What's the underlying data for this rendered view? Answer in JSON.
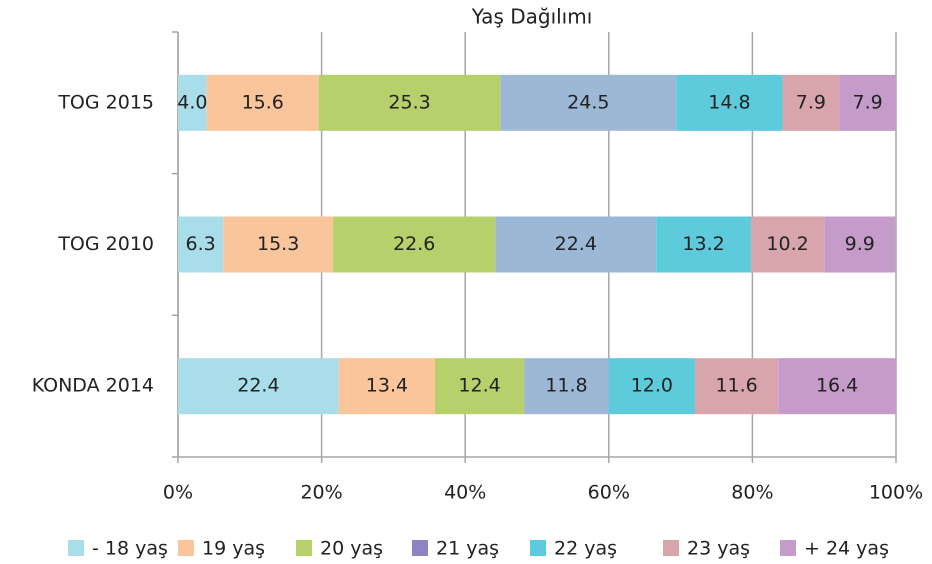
{
  "chart_data": {
    "type": "stacked_bar_horizontal",
    "title": "Yaş Dağılımı",
    "categories": [
      "TOG 2015",
      "TOG 2010",
      "KONDA 2014"
    ],
    "series": [
      {
        "name": "- 18 yaş",
        "color": "#a9dde9",
        "values": [
          4,
          6.3,
          22.4
        ],
        "value_labels": [
          "4.0",
          "6.3",
          "22.4"
        ]
      },
      {
        "name": "19 yaş",
        "color": "#fac59b",
        "values": [
          15.6,
          15.3,
          13.4
        ],
        "value_labels": [
          "15.6",
          "15.3",
          "13.4"
        ]
      },
      {
        "name": "20 yaş",
        "color": "#b6d06c",
        "values": [
          25.3,
          22.6,
          12.4
        ],
        "value_labels": [
          "25.3",
          "22.6",
          "12.4"
        ]
      },
      {
        "name": "21 yaş",
        "color": "#9db8d6",
        "legend_color": "#8e84c4",
        "values": [
          24.5,
          22.4,
          11.8
        ],
        "value_labels": [
          "24.5",
          "22.4",
          "11.8"
        ]
      },
      {
        "name": "22 yaş",
        "color": "#5dcbdc",
        "values": [
          14.8,
          13.2,
          12
        ],
        "value_labels": [
          "14.8",
          "13.2",
          "12.0"
        ]
      },
      {
        "name": "23 yaş",
        "color": "#d9a5ad",
        "values": [
          7.9,
          10.2,
          11.6
        ],
        "value_labels": [
          "7.9",
          "10.2",
          "11.6"
        ]
      },
      {
        "name": "+ 24 yaş",
        "color": "#c49bc9",
        "values": [
          7.9,
          9.9,
          16.4
        ],
        "value_labels": [
          "7.9",
          "9.9",
          "16.4"
        ]
      }
    ],
    "xlim": [
      0,
      100
    ],
    "xticks": [
      {
        "value": 0,
        "label": "0%"
      },
      {
        "value": 20,
        "label": "20%"
      },
      {
        "value": 40,
        "label": "40%"
      },
      {
        "value": 60,
        "label": "60%"
      },
      {
        "value": 80,
        "label": "80%"
      },
      {
        "value": 100,
        "label": "100%"
      }
    ],
    "grid": true,
    "legend": "bottom"
  }
}
